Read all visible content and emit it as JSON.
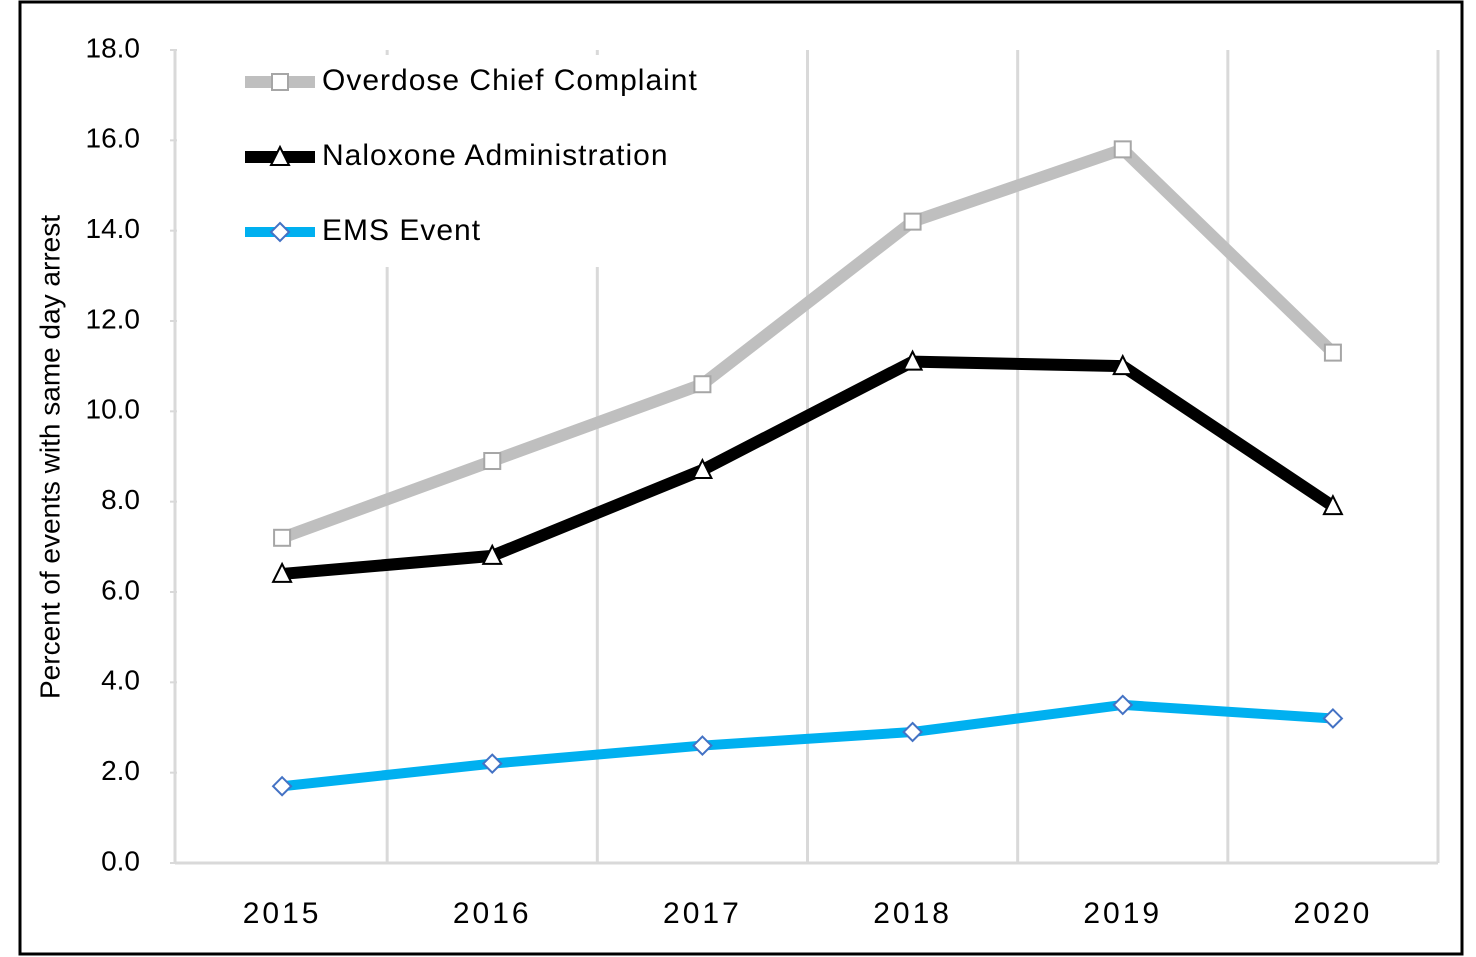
{
  "chart_data": {
    "type": "line",
    "y_label": "Percent of events with same day arrest",
    "categories": [
      "2015",
      "2016",
      "2017",
      "2018",
      "2019",
      "2020"
    ],
    "series": [
      {
        "name": "Overdose Chief Complaint",
        "color": "#bfbfbf",
        "marker": "square",
        "values": [
          7.2,
          8.9,
          10.6,
          14.2,
          15.8,
          11.3
        ]
      },
      {
        "name": "Naloxone Administration",
        "color": "#000000",
        "marker": "triangle",
        "values": [
          6.4,
          6.8,
          8.7,
          11.1,
          11.0,
          7.9
        ]
      },
      {
        "name": "EMS Event",
        "color": "#00b0f0",
        "marker": "diamond",
        "values": [
          1.7,
          2.2,
          2.6,
          2.9,
          3.5,
          3.2
        ]
      }
    ],
    "ylim": [
      0,
      18
    ],
    "yticks": [
      {
        "value": 0,
        "label": "0.0"
      },
      {
        "value": 2,
        "label": "2.0"
      },
      {
        "value": 4,
        "label": "4.0"
      },
      {
        "value": 6,
        "label": "6.0"
      },
      {
        "value": 8,
        "label": "8.0"
      },
      {
        "value": 10,
        "label": "10.0"
      },
      {
        "value": 12,
        "label": "12.0"
      },
      {
        "value": 14,
        "label": "14.0"
      },
      {
        "value": 16,
        "label": "16.0"
      },
      {
        "value": 18,
        "label": "18.0"
      }
    ],
    "grid": "x",
    "legend": "upper left"
  }
}
